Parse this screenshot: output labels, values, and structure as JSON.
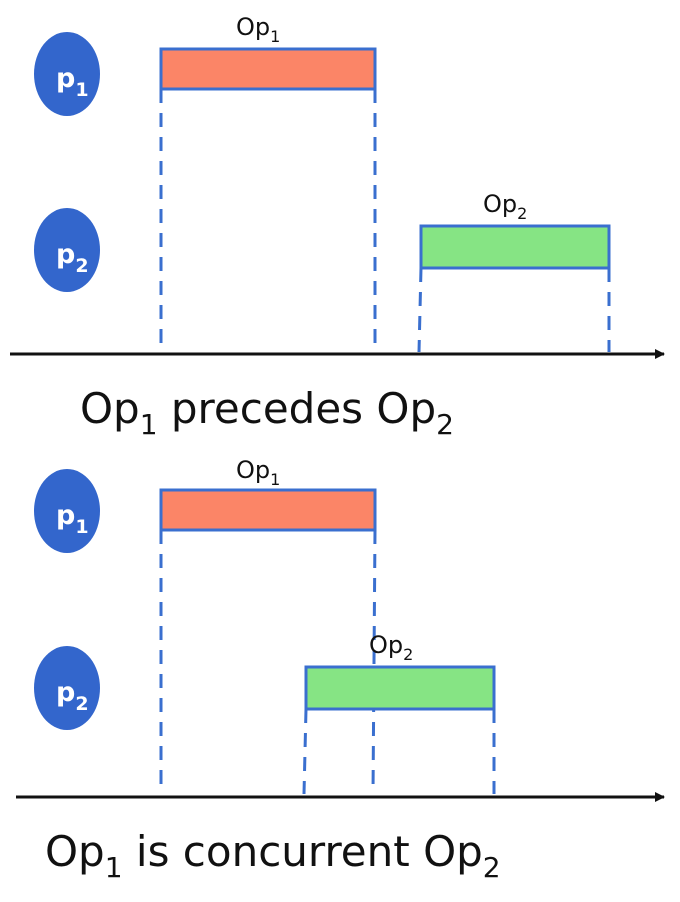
{
  "colors": {
    "process_circle": "#3366cc",
    "bar_border": "#3a6fcf",
    "op1_fill": "#fb8567",
    "op2_fill": "#86e484",
    "dash": "#3a6fcf",
    "axis": "#111111"
  },
  "process_symbol": "p",
  "op_symbol": "Op",
  "scenario1": {
    "p1": {
      "name": "p",
      "sub": "1"
    },
    "p2": {
      "name": "p",
      "sub": "2"
    },
    "op1": {
      "name": "Op",
      "sub": "1"
    },
    "op2": {
      "name": "Op",
      "sub": "2"
    },
    "caption": {
      "a": "Op",
      "a_sub": "1",
      "mid": " precedes ",
      "b": "Op",
      "b_sub": "2"
    }
  },
  "scenario2": {
    "p1": {
      "name": "p",
      "sub": "1"
    },
    "p2": {
      "name": "p",
      "sub": "2"
    },
    "op1": {
      "name": "Op",
      "sub": "1"
    },
    "op2": {
      "name": "Op",
      "sub": "2"
    },
    "caption": {
      "a": "Op",
      "a_sub": "1",
      "mid": " is concurrent ",
      "b": "Op",
      "b_sub": "2"
    }
  }
}
